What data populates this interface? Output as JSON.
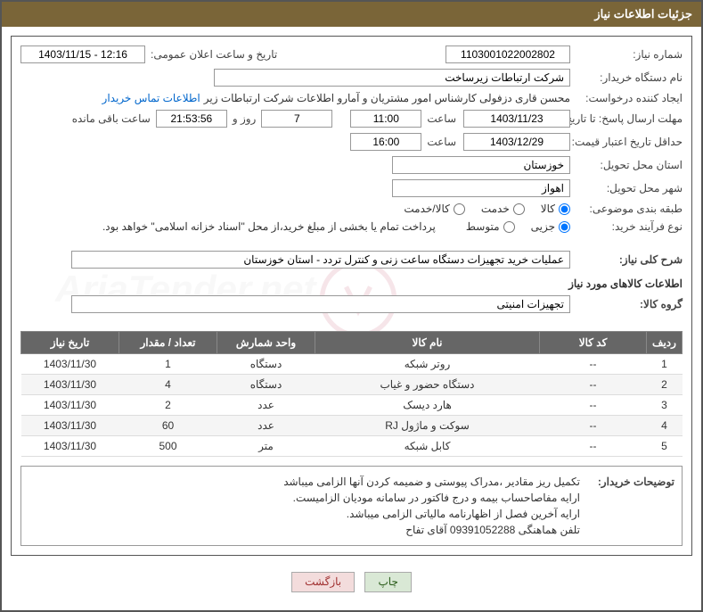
{
  "header": {
    "title": "جزئیات اطلاعات نیاز"
  },
  "form": {
    "need_number_label": "شماره نیاز:",
    "need_number": "1103001022002802",
    "announce_label": "تاریخ و ساعت اعلان عمومی:",
    "announce_value": "1403/11/15 - 12:16",
    "buyer_org_label": "نام دستگاه خریدار:",
    "buyer_org": "شرکت ارتباطات زیرساخت",
    "requester_label": "ایجاد کننده درخواست:",
    "requester": "محسن قاری دزفولی کارشناس امور مشتریان و آمارو اطلاعات شرکت ارتباطات زیر",
    "contact_link": "اطلاعات تماس خریدار",
    "deadline_send_label": "مهلت ارسال پاسخ: تا تاریخ:",
    "deadline_send_date": "1403/11/23",
    "time_label": "ساعت",
    "deadline_send_time": "11:00",
    "days_remaining": "7",
    "days_text": "روز و",
    "time_remaining": "21:53:56",
    "remaining_text": "ساعت باقی مانده",
    "validity_label": "حداقل تاریخ اعتبار قیمت: تا تاریخ:",
    "validity_date": "1403/12/29",
    "validity_time": "16:00",
    "delivery_province_label": "استان محل تحویل:",
    "delivery_province": "خوزستان",
    "delivery_city_label": "شهر محل تحویل:",
    "delivery_city": "اهواز",
    "category_label": "طبقه بندی موضوعی:",
    "cat_goods": "کالا",
    "cat_service": "خدمت",
    "cat_goods_service": "کالا/خدمت",
    "process_label": "نوع فرآیند خرید:",
    "proc_partial": "جزیی",
    "proc_medium": "متوسط",
    "process_note": "پرداخت تمام یا بخشی از مبلغ خرید،از محل \"اسناد خزانه اسلامی\" خواهد بود.",
    "need_desc_label": "شرح کلی نیاز:",
    "need_desc": "عملیات خرید تجهیزات دستگاه ساعت زنی و کنترل تردد - استان خوزستان",
    "goods_info_title": "اطلاعات کالاهای مورد نیاز",
    "goods_group_label": "گروه کالا:",
    "goods_group": "تجهیزات امنیتی"
  },
  "table": {
    "columns": [
      "ردیف",
      "کد کالا",
      "نام کالا",
      "واحد شمارش",
      "تعداد / مقدار",
      "تاریخ نیاز"
    ],
    "rows": [
      [
        "1",
        "--",
        "روتر شبکه",
        "دستگاه",
        "1",
        "1403/11/30"
      ],
      [
        "2",
        "--",
        "دستگاه حضور و غیاب",
        "دستگاه",
        "4",
        "1403/11/30"
      ],
      [
        "3",
        "--",
        "هارد دیسک",
        "عدد",
        "2",
        "1403/11/30"
      ],
      [
        "4",
        "--",
        "سوکت و ماژول RJ",
        "عدد",
        "60",
        "1403/11/30"
      ],
      [
        "5",
        "--",
        "کابل شبکه",
        "متر",
        "500",
        "1403/11/30"
      ]
    ],
    "col_widths": [
      "40px",
      "120px",
      "auto",
      "110px",
      "110px",
      "110px"
    ]
  },
  "buyer_notes": {
    "label": "توضیحات خریدار:",
    "lines": [
      "تکمیل ریز مقادیر ،مدراک پیوستی و ضمیمه کردن آنها الزامی میباشد",
      "ارایه مفاصاحساب بیمه و درج فاکتور در سامانه مودیان الزامیست.",
      "ارایه آخرین فصل از اظهارنامه مالیاتی الزامی میباشد.",
      "تلفن هماهنگی  09391052288  آقای تفاح"
    ]
  },
  "buttons": {
    "print": "چاپ",
    "back": "بازگشت"
  },
  "watermark_text": "AriaTender.net",
  "colors": {
    "header_bg": "#7a6538",
    "th_bg": "#666666",
    "btn_print_bg": "#d9e8d5",
    "btn_back_bg": "#f3dcdc"
  }
}
